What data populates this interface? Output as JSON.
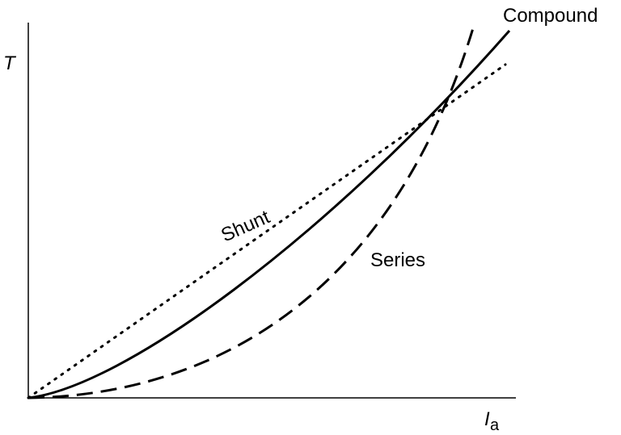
{
  "axes": {
    "y_label": "T",
    "x_label": {
      "main": "I",
      "subscript": "a"
    }
  },
  "curves": [
    {
      "label": "Shunt"
    },
    {
      "label": "Series"
    },
    {
      "label": "Compound"
    }
  ]
}
